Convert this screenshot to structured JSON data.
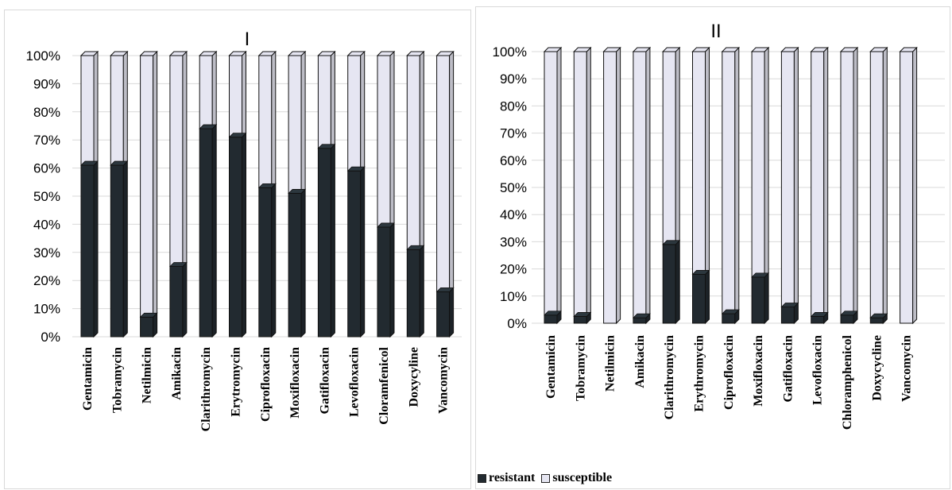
{
  "colors": {
    "resistant": "#222a30",
    "susceptible": "#e6e6f2",
    "edge": "#111111",
    "grid": "#d9d9d9"
  },
  "legend": {
    "resistant": "resistant",
    "susceptible": "susceptible"
  },
  "y_ticks": [
    "0%",
    "10%",
    "20%",
    "30%",
    "40%",
    "50%",
    "60%",
    "70%",
    "80%",
    "90%",
    "100%"
  ],
  "chart_data": [
    {
      "type": "bar",
      "stacked": true,
      "title": "I",
      "ylim": [
        0,
        100
      ],
      "grid": true,
      "categories": [
        "Gentamicin",
        "Tobramycin",
        "Netilmicin",
        "Amikacin",
        "Clarithromycin",
        "Erytromycin",
        "Ciprofloxacin",
        "Moxifloxacin",
        "Gatifloxacin",
        "Levofloxacin",
        "Cloramfenicol",
        "Doxycyline",
        "Vancomycin"
      ],
      "series": [
        {
          "name": "resistant",
          "values": [
            61,
            61,
            7,
            25,
            74,
            71,
            53,
            51,
            67,
            59,
            39,
            31,
            16
          ]
        },
        {
          "name": "susceptible",
          "values": [
            39,
            39,
            93,
            75,
            26,
            29,
            47,
            49,
            33,
            41,
            61,
            69,
            84
          ]
        }
      ]
    },
    {
      "type": "bar",
      "stacked": true,
      "title": "II",
      "ylim": [
        0,
        100
      ],
      "grid": true,
      "legend_position": "bottom-left",
      "categories": [
        "Gentamicin",
        "Tobramycin",
        "Netilmicin",
        "Amikacin",
        "Clarithromycin",
        "Erythromycin",
        "Ciprofloxacin",
        "Moxifloxacin",
        "Gatifloxacin",
        "Levofloxacin",
        "Chloramphenicol",
        "Doxycycline",
        "Vancomycin"
      ],
      "series": [
        {
          "name": "resistant",
          "values": [
            3,
            2.5,
            0,
            2,
            29,
            18,
            3.5,
            17,
            6,
            2.5,
            3,
            2,
            0
          ]
        },
        {
          "name": "susceptible",
          "values": [
            97,
            97.5,
            100,
            98,
            71,
            82,
            96.5,
            83,
            94,
            97.5,
            97,
            98,
            100
          ]
        }
      ]
    }
  ]
}
